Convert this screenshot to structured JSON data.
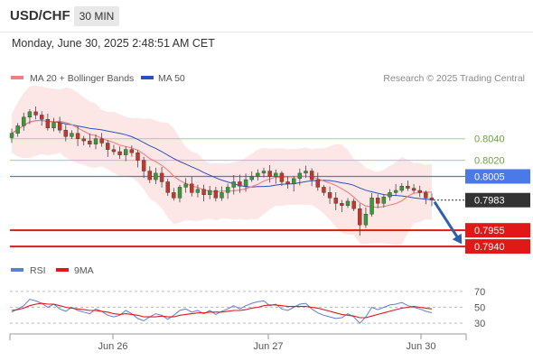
{
  "header": {
    "symbol": "USD/CHF",
    "timeframe": "30 MIN",
    "datetime": "Monday, June 30, 2025 2:48:51 AM CET"
  },
  "legend": {
    "ma20_bb": "MA 20 + Bollinger Bands",
    "ma50": "MA 50",
    "credit": "Research © 2025 Trading Central"
  },
  "colors": {
    "ma20": "#f08080",
    "ma50": "#2a52be",
    "band_fill": "#fde3e3",
    "candle_up": "#3a9a3a",
    "candle_down": "#c0392b",
    "resistance": "#a7d08c",
    "pivot": "#4a79e8",
    "support": "#e01818",
    "arrow": "#2e5fa8",
    "rsi": "#5b7fd6",
    "rsi_ma": "#e01818"
  },
  "chart_data": [
    {
      "type": "candlestick",
      "title": "USD/CHF 30 MIN",
      "x_tick_labels": [
        "Jun 26",
        "Jun 27",
        "Jun 30"
      ],
      "ylim": [
        0.793,
        0.8085
      ],
      "overlays": [
        "MA 20 + Bollinger Bands",
        "MA 50"
      ],
      "levels": [
        {
          "name": "resistance-2",
          "value": 0.804,
          "label": "0.8040",
          "kind": "resistance"
        },
        {
          "name": "resistance-1",
          "value": 0.802,
          "label": "0.8020",
          "kind": "resistance"
        },
        {
          "name": "pivot",
          "value": 0.8005,
          "label": "0.8005",
          "kind": "pivot"
        },
        {
          "name": "last-price",
          "value": 0.7983,
          "label": "0.7983",
          "kind": "last"
        },
        {
          "name": "support-1",
          "value": 0.7955,
          "label": "0.7955",
          "kind": "support"
        },
        {
          "name": "support-2",
          "value": 0.794,
          "label": "0.7940",
          "kind": "support"
        }
      ],
      "trend_arrow": {
        "from": 0.7983,
        "to": 0.794,
        "direction": "down"
      },
      "close_path": [
        0.8045,
        0.8052,
        0.806,
        0.8065,
        0.8062,
        0.8058,
        0.805,
        0.8055,
        0.8048,
        0.8042,
        0.8045,
        0.804,
        0.8038,
        0.8035,
        0.804,
        0.8036,
        0.803,
        0.8028,
        0.8025,
        0.803,
        0.8027,
        0.802,
        0.801,
        0.8002,
        0.8008,
        0.8,
        0.799,
        0.7985,
        0.7995,
        0.7998,
        0.799,
        0.7993,
        0.7988,
        0.7992,
        0.7985,
        0.799,
        0.7995,
        0.8,
        0.7996,
        0.8002,
        0.8005,
        0.8008,
        0.801,
        0.8005,
        0.8008,
        0.8,
        0.7998,
        0.8003,
        0.8008,
        0.801,
        0.8002,
        0.7995,
        0.799,
        0.7985,
        0.798,
        0.7978,
        0.7982,
        0.7975,
        0.796,
        0.797,
        0.7985,
        0.798,
        0.7986,
        0.799,
        0.7992,
        0.7996,
        0.7994,
        0.7992,
        0.799,
        0.7985,
        0.7983
      ]
    },
    {
      "type": "line",
      "title": "RSI",
      "series": [
        {
          "name": "RSI",
          "values": [
            44,
            48,
            52,
            60,
            58,
            55,
            50,
            54,
            48,
            45,
            50,
            46,
            44,
            42,
            48,
            45,
            40,
            38,
            40,
            46,
            42,
            36,
            33,
            38,
            42,
            40,
            35,
            40,
            46,
            48,
            44,
            46,
            42,
            46,
            41,
            45,
            48,
            52,
            48,
            52,
            55,
            57,
            58,
            52,
            54,
            48,
            46,
            50,
            54,
            55,
            48,
            43,
            40,
            38,
            36,
            37,
            42,
            38,
            30,
            38,
            50,
            47,
            50,
            53,
            54,
            56,
            52,
            50,
            48,
            45,
            43
          ]
        },
        {
          "name": "9MA",
          "values": [
            46,
            47,
            49,
            52,
            54,
            55,
            54,
            54,
            52,
            50,
            49,
            48,
            47,
            46,
            46,
            45,
            44,
            42,
            41,
            42,
            41,
            40,
            38,
            38,
            38,
            39,
            38,
            38,
            40,
            41,
            42,
            43,
            43,
            44,
            44,
            44,
            45,
            46,
            46,
            47,
            49,
            50,
            52,
            53,
            53,
            52,
            51,
            51,
            51,
            51,
            50,
            49,
            47,
            45,
            43,
            41,
            40,
            39,
            37,
            37,
            39,
            41,
            43,
            45,
            47,
            49,
            50,
            51,
            50,
            49,
            48
          ]
        }
      ],
      "y_tick_labels": [
        "70",
        "50",
        "30"
      ],
      "ylim": [
        20,
        80
      ]
    }
  ]
}
